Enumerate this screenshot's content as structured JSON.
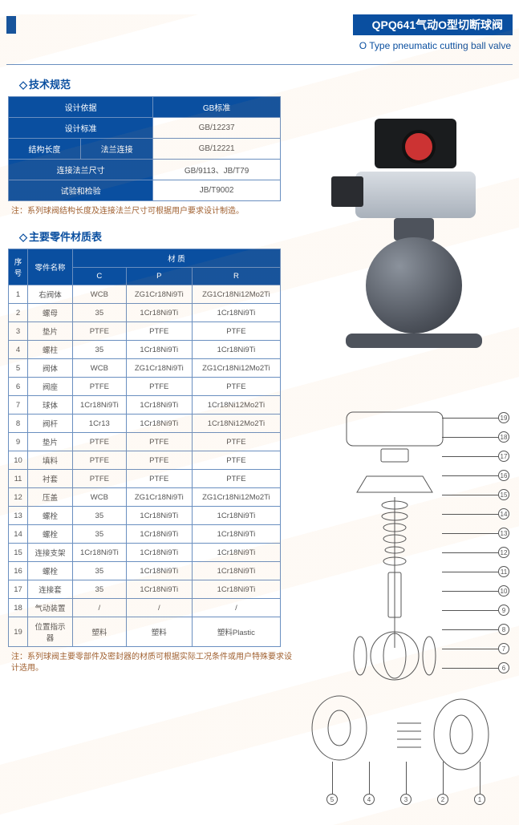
{
  "header": {
    "title_cn": "QPQ641气动O型切断球阀",
    "subtitle_en": "O Type pneumatic cutting ball valve"
  },
  "spec": {
    "title": "技术规范",
    "columns": [
      "设计依据",
      "GB标准"
    ],
    "rows": [
      [
        "设计标准",
        "GB/12237"
      ],
      [
        "结构长度",
        "法兰连接",
        "GB/12221"
      ],
      [
        "连接法兰尺寸",
        "GB/9113、JB/T79"
      ],
      [
        "试验和检验",
        "JB/T9002"
      ]
    ],
    "note_prefix": "注：",
    "note": "系列球阀结构长度及连接法兰尺寸可根据用户要求设计制造。"
  },
  "parts": {
    "title": "主要零件材质表",
    "head": {
      "seq": "序号",
      "name": "零件名称",
      "material": "材 质",
      "cols": [
        "C",
        "P",
        "R"
      ]
    },
    "rows": [
      {
        "n": "1",
        "name": "右阀体",
        "c": "WCB",
        "p": "ZG1Cr18Ni9Ti",
        "r": "ZG1Cr18Ni12Mo2Ti"
      },
      {
        "n": "2",
        "name": "螺母",
        "c": "35",
        "p": "1Cr18Ni9Ti",
        "r": "1Cr18Ni9Ti"
      },
      {
        "n": "3",
        "name": "垫片",
        "c": "PTFE",
        "p": "PTFE",
        "r": "PTFE"
      },
      {
        "n": "4",
        "name": "螺柱",
        "c": "35",
        "p": "1Cr18Ni9Ti",
        "r": "1Cr18Ni9Ti"
      },
      {
        "n": "5",
        "name": "阀体",
        "c": "WCB",
        "p": "ZG1Cr18Ni9Ti",
        "r": "ZG1Cr18Ni12Mo2Ti"
      },
      {
        "n": "6",
        "name": "阀座",
        "c": "PTFE",
        "p": "PTFE",
        "r": "PTFE"
      },
      {
        "n": "7",
        "name": "球体",
        "c": "1Cr18Ni9Ti",
        "p": "1Cr18Ni9Ti",
        "r": "1Cr18Ni12Mo2Ti"
      },
      {
        "n": "8",
        "name": "阀杆",
        "c": "1Cr13",
        "p": "1Cr18Ni9Ti",
        "r": "1Cr18Ni12Mo2Ti"
      },
      {
        "n": "9",
        "name": "垫片",
        "c": "PTFE",
        "p": "PTFE",
        "r": "PTFE"
      },
      {
        "n": "10",
        "name": "填料",
        "c": "PTFE",
        "p": "PTFE",
        "r": "PTFE"
      },
      {
        "n": "11",
        "name": "衬套",
        "c": "PTFE",
        "p": "PTFE",
        "r": "PTFE"
      },
      {
        "n": "12",
        "name": "压盖",
        "c": "WCB",
        "p": "ZG1Cr18Ni9Ti",
        "r": "ZG1Cr18Ni12Mo2Ti"
      },
      {
        "n": "13",
        "name": "螺栓",
        "c": "35",
        "p": "1Cr18Ni9Ti",
        "r": "1Cr18Ni9Ti"
      },
      {
        "n": "14",
        "name": "螺栓",
        "c": "35",
        "p": "1Cr18Ni9Ti",
        "r": "1Cr18Ni9Ti"
      },
      {
        "n": "15",
        "name": "连接支架",
        "c": "1Cr18Ni9Ti",
        "p": "1Cr18Ni9Ti",
        "r": "1Cr18Ni9Ti"
      },
      {
        "n": "16",
        "name": "螺栓",
        "c": "35",
        "p": "1Cr18Ni9Ti",
        "r": "1Cr18Ni9Ti"
      },
      {
        "n": "17",
        "name": "连接套",
        "c": "35",
        "p": "1Cr18Ni9Ti",
        "r": "1Cr18Ni9Ti"
      },
      {
        "n": "18",
        "name": "气动装置",
        "c": "/",
        "p": "/",
        "r": "/"
      },
      {
        "n": "19",
        "name": "位置指示器",
        "c": "塑料",
        "p": "塑料",
        "r": "塑料Plastic"
      }
    ],
    "note_prefix": "注：",
    "note": "系列球阀主要零部件及密封器的材质可根据实际工况条件或用户特殊要求设计选用。"
  },
  "diagram": {
    "callouts_right": [
      "19",
      "18",
      "17",
      "16",
      "15",
      "14",
      "13",
      "12",
      "11",
      "10",
      "9",
      "8",
      "7",
      "6"
    ],
    "callouts_bottom": [
      "5",
      "4",
      "3",
      "2",
      "1"
    ]
  },
  "colors": {
    "brand": "#0a4fa0",
    "border": "#6a8fc0",
    "note": "#a06030"
  }
}
